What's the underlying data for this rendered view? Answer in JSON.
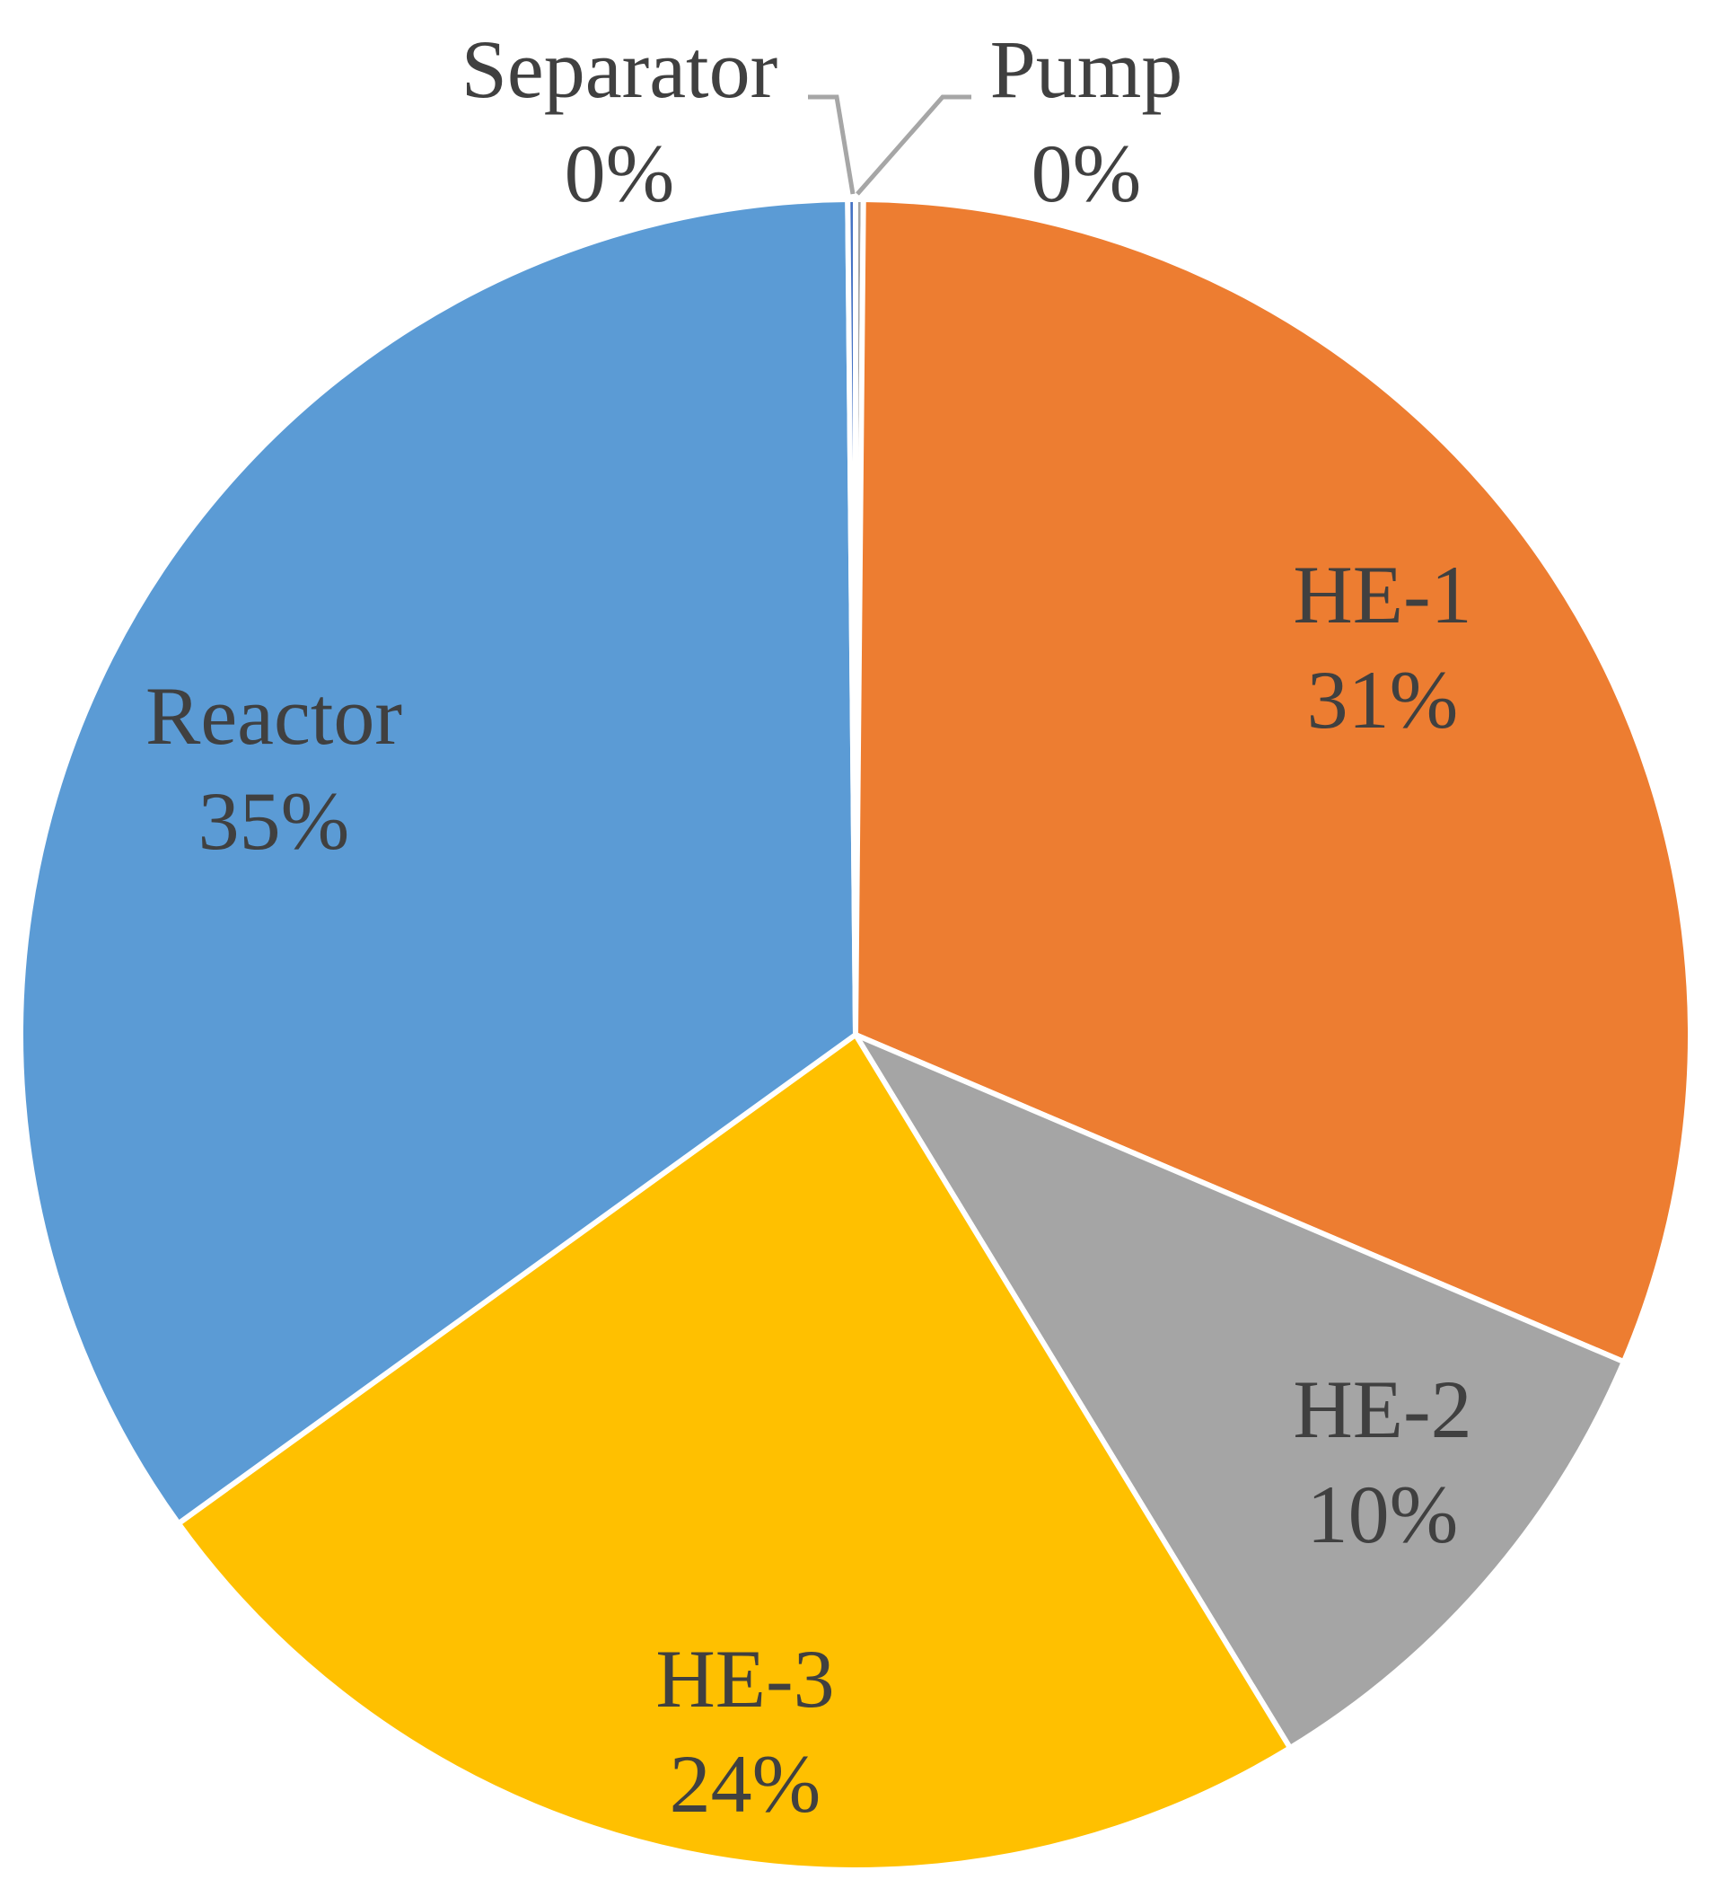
{
  "chart_data": {
    "type": "pie",
    "slices": [
      {
        "name": "Pump",
        "value": 0.15,
        "percent_label": "0%",
        "color": "#A5A5A5"
      },
      {
        "name": "HE-1",
        "value": 31.3,
        "percent_label": "31%",
        "color": "#ED7D31"
      },
      {
        "name": "HE-2",
        "value": 9.9,
        "percent_label": "10%",
        "color": "#A5A5A5"
      },
      {
        "name": "HE-3",
        "value": 23.8,
        "percent_label": "24%",
        "color": "#FFC000"
      },
      {
        "name": "Reactor",
        "value": 34.85,
        "percent_label": "35%",
        "color": "#5B9BD5"
      },
      {
        "name": "Separator",
        "value": 0.15,
        "percent_label": "0%",
        "color": "#4472C4"
      }
    ],
    "start_angle": "12 o'clock",
    "direction": "clockwise",
    "legend": "none",
    "data_labels": "category name and percentage"
  }
}
